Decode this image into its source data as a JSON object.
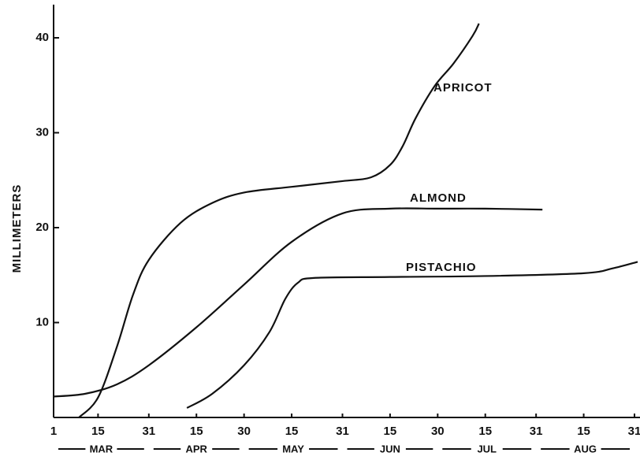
{
  "chart_data": {
    "type": "line",
    "ylabel": "MILLIMETERS",
    "xlim": [
      0,
      184
    ],
    "ylim": [
      0,
      43.5
    ],
    "yticks": [
      10,
      20,
      30,
      40
    ],
    "xticks": [
      {
        "value": 0,
        "label": "1"
      },
      {
        "value": 14,
        "label": "15"
      },
      {
        "value": 30,
        "label": "31"
      },
      {
        "value": 45,
        "label": "15"
      },
      {
        "value": 60,
        "label": "30"
      },
      {
        "value": 75,
        "label": "15"
      },
      {
        "value": 91,
        "label": "31"
      },
      {
        "value": 106,
        "label": "15"
      },
      {
        "value": 121,
        "label": "30"
      },
      {
        "value": 136,
        "label": "15"
      },
      {
        "value": 152,
        "label": "31"
      },
      {
        "value": 167,
        "label": "15"
      },
      {
        "value": 183,
        "label": "31"
      }
    ],
    "months": [
      "MAR",
      "APR",
      "MAY",
      "JUN",
      "JUL",
      "AUG"
    ],
    "series": [
      {
        "name": "APRICOT",
        "color": "#111111",
        "x": [
          8,
          14,
          20,
          25,
          30,
          40,
          50,
          60,
          75,
          91,
          100,
          106,
          110,
          114,
          120,
          126,
          132,
          134
        ],
        "values": [
          0,
          2.1,
          7.5,
          12.9,
          16.6,
          20.5,
          22.6,
          23.7,
          24.3,
          24.9,
          25.3,
          26.6,
          28.6,
          31.5,
          34.9,
          37.3,
          40.2,
          41.5
        ]
      },
      {
        "name": "ALMOND",
        "color": "#111111",
        "x": [
          0,
          10,
          20,
          30,
          45,
          60,
          75,
          91,
          106,
          121,
          136,
          154
        ],
        "values": [
          2.2,
          2.5,
          3.5,
          5.5,
          9.5,
          14,
          18.5,
          21.5,
          22,
          22,
          22,
          21.9
        ]
      },
      {
        "name": "PISTACHIO",
        "color": "#111111",
        "x": [
          42,
          50,
          60,
          68,
          73,
          77,
          82,
          106,
          136,
          167,
          176,
          184
        ],
        "values": [
          1,
          2.5,
          5.5,
          9,
          12.5,
          14.2,
          14.7,
          14.8,
          14.9,
          15.2,
          15.7,
          16.4
        ]
      }
    ]
  }
}
